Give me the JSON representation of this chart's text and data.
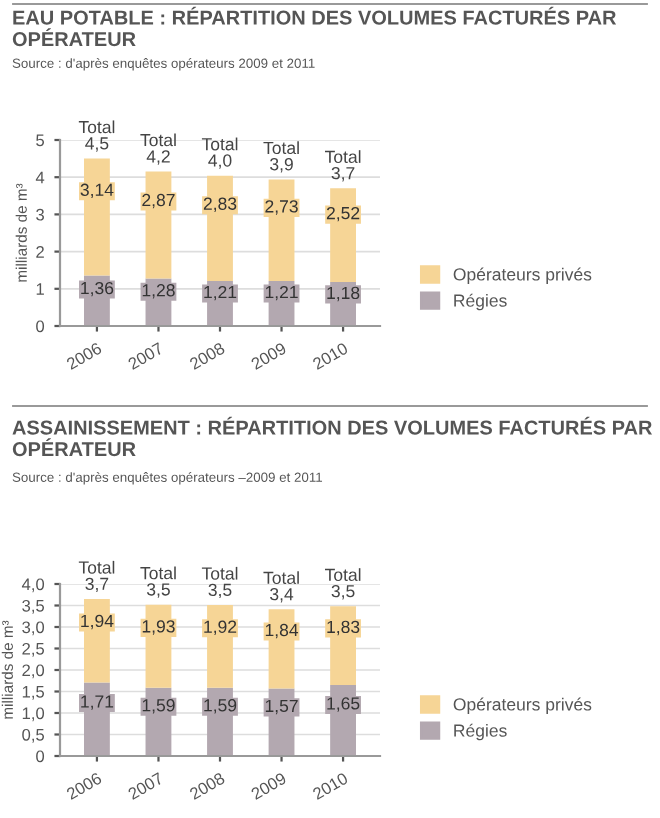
{
  "chart_data": [
    {
      "type": "bar",
      "title": "EAU POTABLE : RÉPARTITION DES VOLUMES FACTURÉS PAR OPÉRATEUR",
      "annotations": [
        "Source : d'après enquêtes opérateurs 2009 et 2011"
      ],
      "ylabel": "milliards de m³",
      "categories": [
        "2006",
        "2007",
        "2008",
        "2009",
        "2010"
      ],
      "stacked": true,
      "series": [
        {
          "name": "Régies",
          "color": "#b3a8b0",
          "values": [
            1.36,
            1.28,
            1.21,
            1.21,
            1.18
          ],
          "value_labels": [
            "1,36",
            "1,28",
            "1,21",
            "1,21",
            "1,18"
          ]
        },
        {
          "name": "Opérateurs privés",
          "color": "#f6d596",
          "values": [
            3.14,
            2.87,
            2.83,
            2.73,
            2.52
          ],
          "value_labels": [
            "3,14",
            "2,87",
            "2,83",
            "2,73",
            "2,52"
          ]
        }
      ],
      "totals": [
        "Total\n4,5",
        "Total\n4,2",
        "Total\n4,0",
        "Total\n3,9",
        "Total\n3,7"
      ],
      "ylim": [
        0,
        5
      ],
      "yticks": [
        0,
        1,
        2,
        3,
        4,
        5
      ],
      "grid": "y",
      "legend": "right"
    },
    {
      "type": "bar",
      "title": "ASSAINISSEMENT : RÉPARTITION DES VOLUMES FACTURÉS PAR OPÉRATEUR",
      "annotations": [
        "Source : d'après enquêtes opérateurs –2009 et 2011"
      ],
      "ylabel": "milliards de m³",
      "categories": [
        "2006",
        "2007",
        "2008",
        "2009",
        "2010"
      ],
      "stacked": true,
      "series": [
        {
          "name": "Régies",
          "color": "#b3a8b0",
          "values": [
            1.71,
            1.59,
            1.59,
            1.57,
            1.65
          ],
          "value_labels": [
            "1,71",
            "1,59",
            "1,59",
            "1,57",
            "1,65"
          ]
        },
        {
          "name": "Opérateurs privés",
          "color": "#f6d596",
          "values": [
            1.94,
            1.93,
            1.92,
            1.84,
            1.83
          ],
          "value_labels": [
            "1,94",
            "1,93",
            "1,92",
            "1,84",
            "1,83"
          ]
        }
      ],
      "totals": [
        "Total\n3,7",
        "Total\n3,5",
        "Total\n3,5",
        "Total\n3,4",
        "Total\n3,5"
      ],
      "ylim": [
        0,
        4
      ],
      "yticks": [
        0,
        {
          "value": 0.5,
          "label": "0,5"
        },
        {
          "value": 1,
          "label": "1,0"
        },
        {
          "value": 1.5,
          "label": "1,5"
        },
        {
          "value": 2,
          "label": "2,0"
        },
        {
          "value": 2.5,
          "label": "2,5"
        },
        {
          "value": 3,
          "label": "3,0"
        },
        {
          "value": 3.5,
          "label": "3,5"
        },
        {
          "value": 4,
          "label": "4,0"
        }
      ],
      "grid": "y",
      "legend": "right"
    }
  ]
}
